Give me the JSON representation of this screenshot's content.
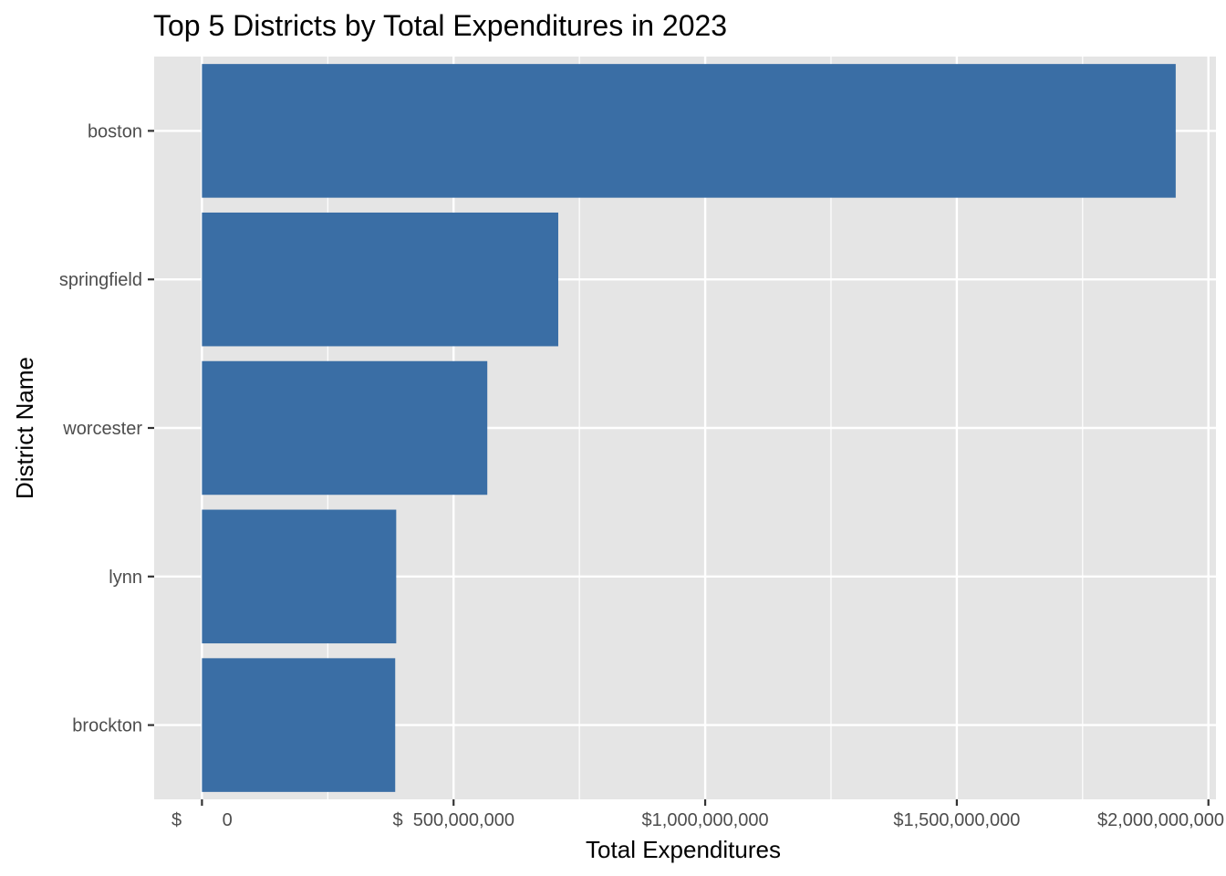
{
  "chart_data": {
    "type": "bar",
    "orientation": "horizontal",
    "title": "Top 5 Districts by Total Expenditures in 2023",
    "xlabel": "Total Expenditures",
    "ylabel": "District Name",
    "categories": [
      "boston",
      "springfield",
      "worcester",
      "lynn",
      "brockton"
    ],
    "values": [
      1935000000,
      708000000,
      567000000,
      386000000,
      384000000
    ],
    "xlim": [
      -95000000,
      2015000000
    ],
    "x_ticks": [
      {
        "value": 0,
        "label": "$        0"
      },
      {
        "value": 500000000,
        "label": "$  500,000,000"
      },
      {
        "value": 1000000000,
        "label": "$1,000,000,000"
      },
      {
        "value": 1500000000,
        "label": "$1,500,000,000"
      },
      {
        "value": 2000000000,
        "label": "$2,000,000,000"
      }
    ],
    "grid": true,
    "legend": "none",
    "bar_color": "#3A6EA5",
    "panel_background": "#E5E5E5",
    "grid_color": "#FFFFFF"
  }
}
